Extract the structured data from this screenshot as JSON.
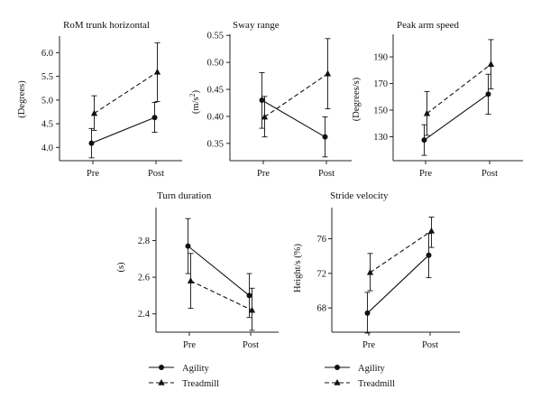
{
  "chart_data": [
    {
      "type": "line",
      "title": "RoM trunk horizontal",
      "ylabel": "(Degrees)",
      "ylabel_sup": "",
      "ylabel_suffix": "",
      "categories": [
        "Pre",
        "Post"
      ],
      "ylim": [
        3.72,
        6.35
      ],
      "yticks": [
        4.0,
        4.5,
        5.0,
        5.5,
        6.0
      ],
      "tick_labels": [
        "4.0",
        "4.5",
        "5.0",
        "5.5",
        "6.0"
      ],
      "series": [
        {
          "name": "Agility",
          "values": [
            4.09,
            4.63
          ],
          "err": [
            [
              3.78,
              4.4
            ],
            [
              4.32,
              4.95
            ]
          ]
        },
        {
          "name": "Treadmill",
          "values": [
            4.72,
            5.59
          ],
          "err": [
            [
              4.36,
              5.09
            ],
            [
              4.97,
              6.21
            ]
          ]
        }
      ]
    },
    {
      "type": "line",
      "title": "Sway range",
      "ylabel": "(m/s",
      "ylabel_sup": "2",
      "ylabel_suffix": ")",
      "categories": [
        "Pre",
        "Post"
      ],
      "ylim": [
        0.318,
        0.552
      ],
      "yticks": [
        0.35,
        0.4,
        0.45,
        0.5,
        0.55
      ],
      "tick_labels": [
        "0.35",
        "0.40",
        "0.45",
        "0.50",
        "0.55"
      ],
      "series": [
        {
          "name": "Agility",
          "values": [
            0.43,
            0.362
          ],
          "err": [
            [
              0.378,
              0.481
            ],
            [
              0.325,
              0.399
            ]
          ]
        },
        {
          "name": "Treadmill",
          "values": [
            0.399,
            0.479
          ],
          "err": [
            [
              0.362,
              0.437
            ],
            [
              0.414,
              0.544
            ]
          ]
        }
      ]
    },
    {
      "type": "line",
      "title": "Peak arm speed",
      "ylabel": "(Degrees/s)",
      "ylabel_sup": "",
      "ylabel_suffix": "",
      "categories": [
        "Pre",
        "Post"
      ],
      "ylim": [
        112,
        207
      ],
      "yticks": [
        130,
        150,
        170,
        190
      ],
      "tick_labels": [
        "130",
        "150",
        "170",
        "190"
      ],
      "series": [
        {
          "name": "Agility",
          "values": [
            127.5,
            162
          ],
          "err": [
            [
              116,
              139
            ],
            [
              147,
              177
            ]
          ]
        },
        {
          "name": "Treadmill",
          "values": [
            147.5,
            184.5
          ],
          "err": [
            [
              131,
              164
            ],
            [
              166,
              203
            ]
          ]
        }
      ]
    },
    {
      "type": "line",
      "title": "Turn duration",
      "ylabel": "(s)",
      "ylabel_sup": "",
      "ylabel_suffix": "",
      "categories": [
        "Pre",
        "Post"
      ],
      "ylim": [
        2.3,
        2.98
      ],
      "yticks": [
        2.4,
        2.6,
        2.8
      ],
      "tick_labels": [
        "2.4",
        "2.6",
        "2.8"
      ],
      "series": [
        {
          "name": "Agility",
          "values": [
            2.77,
            2.5
          ],
          "err": [
            [
              2.62,
              2.92
            ],
            [
              2.38,
              2.62
            ]
          ]
        },
        {
          "name": "Treadmill",
          "values": [
            2.58,
            2.42
          ],
          "err": [
            [
              2.43,
              2.73
            ],
            [
              2.31,
              2.54
            ]
          ]
        }
      ]
    },
    {
      "type": "line",
      "title": "Stride velocity",
      "ylabel": "Height/s (%)",
      "ylabel_sup": "",
      "ylabel_suffix": "",
      "categories": [
        "Pre",
        "Post"
      ],
      "ylim": [
        65.2,
        79.6
      ],
      "yticks": [
        68,
        72,
        76
      ],
      "tick_labels": [
        "68",
        "72",
        "76"
      ],
      "series": [
        {
          "name": "Agility",
          "values": [
            67.4,
            74.1
          ],
          "err": [
            [
              65.1,
              69.8
            ],
            [
              71.5,
              76.6
            ]
          ]
        },
        {
          "name": "Treadmill",
          "values": [
            72.1,
            76.9
          ],
          "err": [
            [
              70.0,
              74.3
            ],
            [
              75.0,
              78.5
            ]
          ]
        }
      ]
    }
  ],
  "legend": [
    {
      "label": "Agility",
      "marker": "circle",
      "style": "solid"
    },
    {
      "label": "Treadmill",
      "marker": "triangle",
      "style": "dashed"
    }
  ]
}
